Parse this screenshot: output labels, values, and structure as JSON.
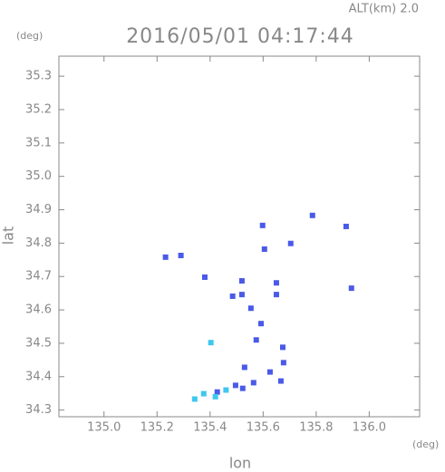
{
  "chart_data": {
    "type": "scatter",
    "title": "2016/05/01 04:17:44",
    "subtitle": "ALT(km) 2.0",
    "x_label": "lon",
    "y_label": "lat",
    "x_unit": "(deg)",
    "y_unit": "(deg)",
    "xlim": [
      134.83,
      136.19
    ],
    "ylim": [
      34.28,
      35.36
    ],
    "xticks": [
      {
        "value": 135,
        "label": "135.0"
      },
      135.2,
      135.4,
      135.6,
      135.8,
      {
        "value": 136,
        "label": "136.0"
      }
    ],
    "yticks": [
      34.3,
      34.4,
      34.5,
      34.6,
      34.7,
      34.8,
      34.9,
      {
        "value": 35,
        "label": "35.0"
      },
      35.1,
      35.2,
      35.3
    ],
    "x": [
      135.232,
      135.29,
      135.38,
      135.52,
      135.52,
      135.485,
      135.598,
      135.605,
      135.704,
      135.786,
      135.913,
      135.933,
      135.65,
      135.65,
      135.554,
      135.592,
      135.574,
      135.403,
      135.674,
      135.677,
      135.53,
      135.626,
      135.667,
      135.564,
      135.496,
      135.427,
      135.376,
      135.342,
      135.46,
      135.523,
      135.42
    ],
    "y": [
      34.758,
      34.763,
      34.698,
      34.687,
      34.646,
      34.641,
      34.853,
      34.782,
      34.799,
      34.883,
      34.85,
      34.665,
      34.681,
      34.646,
      34.605,
      34.559,
      34.51,
      34.502,
      34.488,
      34.442,
      34.428,
      34.414,
      34.387,
      34.382,
      34.374,
      34.354,
      34.349,
      34.333,
      34.36,
      34.365,
      34.34
    ],
    "colors": [
      "#4a5ae8",
      "#4a5ae8",
      "#4a5ae8",
      "#4a5ae8",
      "#4a5ae8",
      "#4a5ae8",
      "#4a5ae8",
      "#4a5ae8",
      "#4a5ae8",
      "#4a5ae8",
      "#4a5ae8",
      "#4a5ae8",
      "#4a5ae8",
      "#4a5ae8",
      "#4a5ae8",
      "#4a5ae8",
      "#4a5ae8",
      "#3fc8ee",
      "#4a5ae8",
      "#4a5ae8",
      "#4a5ae8",
      "#4a5ae8",
      "#4a5ae8",
      "#4a5ae8",
      "#4a5ae8",
      "#4a5ae8",
      "#3fc8ee",
      "#3fc8ee",
      "#3fc8ee",
      "#4a5ae8",
      "#3fc8ee"
    ]
  }
}
